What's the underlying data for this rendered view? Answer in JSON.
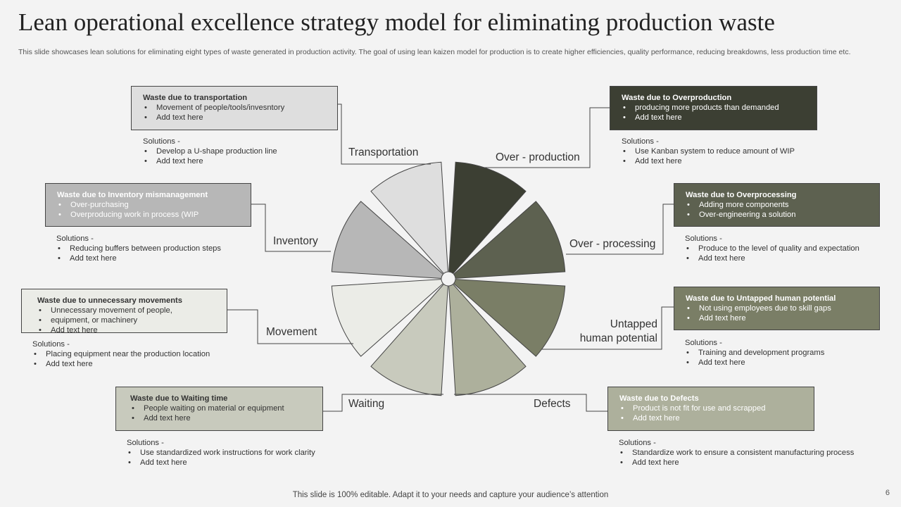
{
  "title": "Lean operational excellence strategy model for eliminating production waste",
  "subtitle": "This slide showcases lean solutions for eliminating eight types of waste generated in production activity.  The goal of using lean kaizen model for production is to create higher efficiencies, quality performance, reducing breakdowns, less production time etc.",
  "labels": {
    "transportation": "Transportation",
    "overproduction": "Over - production",
    "inventory": "Inventory",
    "overprocessing": "Over - processing",
    "movement": "Movement",
    "untapped_1": "Untapped",
    "untapped_2": "human potential",
    "waiting": "Waiting",
    "defects": "Defects"
  },
  "boxes": {
    "transportation": {
      "title": "Waste due to transportation",
      "items": [
        "Movement of people/tools/invesntory",
        "Add text here"
      ]
    },
    "overproduction": {
      "title": "Waste due to Overproduction",
      "items": [
        "producing more products than demanded",
        "Add text here"
      ]
    },
    "inventory": {
      "title": "Waste due to Inventory  mismanagement",
      "items": [
        "Over-purchasing",
        "Overproducing work in process (WIP"
      ]
    },
    "overprocessing": {
      "title": "Waste due to Overprocessing",
      "items": [
        "Adding more components",
        "Over-engineering a solution"
      ]
    },
    "movement": {
      "title": "Waste due to unnecessary movements",
      "items": [
        "Unnecessary movement of people,",
        "equipment, or machinery",
        "Add text here"
      ]
    },
    "untapped": {
      "title": "Waste due to Untapped  human potential",
      "items": [
        "Not using employees due to skill gaps",
        "Add text here"
      ]
    },
    "waiting": {
      "title": "Waste due to Waiting time",
      "items": [
        "People waiting on material or equipment",
        "Add text here"
      ]
    },
    "defects": {
      "title": "Waste due to Defects",
      "items": [
        "Product is not fit for use and scrapped",
        "Add text here"
      ]
    }
  },
  "solutions": {
    "heading": "Solutions -",
    "transportation": [
      "Develop a U-shape production line",
      "Add text here"
    ],
    "overproduction": [
      "Use Kanban system to reduce amount of WIP",
      "Add text here"
    ],
    "inventory": [
      "Reducing buffers between production steps",
      "Add text here"
    ],
    "overprocessing": [
      "Produce to the level of quality and expectation",
      "Add text here"
    ],
    "movement": [
      "Placing equipment near the production location",
      "Add text here"
    ],
    "untapped": [
      "Training and development programs",
      "Add text here"
    ],
    "waiting": [
      "Use standardized work instructions for work clarity",
      "Add text here"
    ],
    "defects": [
      "Standardize work to ensure a consistent manufacturing process",
      "Add text here"
    ]
  },
  "colors": {
    "overproduction": "#3c3f33",
    "overprocessing": "#5d6150",
    "untapped": "#7a7e66",
    "defects": "#adb09c",
    "waiting": "#c8cabd",
    "movement": "#ebece7",
    "inventory": "#b7b7b7",
    "transportation": "#dedede"
  },
  "footer": "This slide is 100% editable. Adapt it to your needs and capture your audience’s attention",
  "page_number": "6"
}
